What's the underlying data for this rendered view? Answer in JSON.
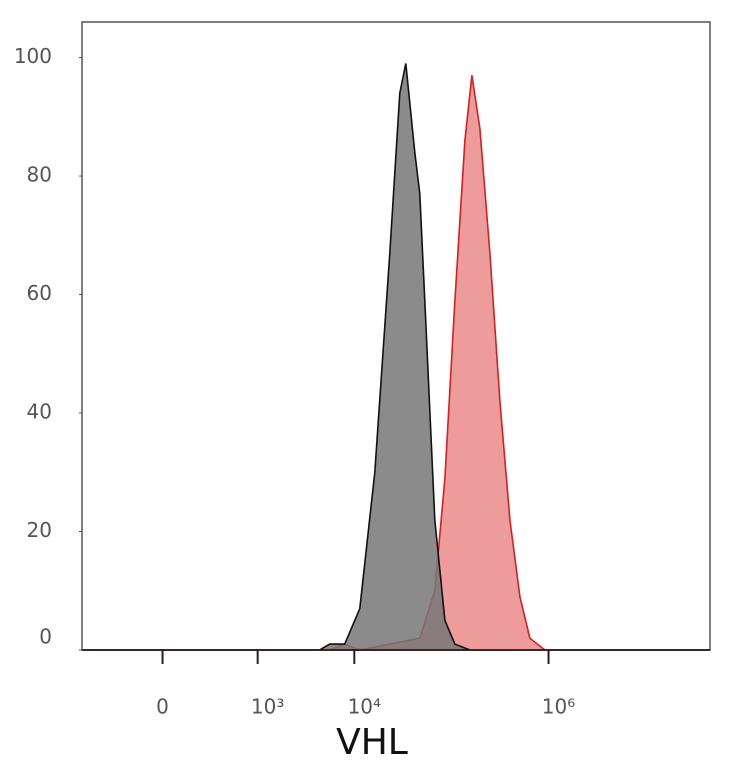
{
  "chart_data": {
    "type": "area",
    "x_label": "VHL",
    "xscale": "asinh",
    "xlim": [
      -700,
      46000000
    ],
    "xticks": [
      0,
      {
        "value": 1000,
        "label": "10³"
      },
      {
        "value": 10000,
        "label": "10⁴"
      },
      {
        "value": 1000000,
        "label": "10⁶"
      }
    ],
    "ylim": [
      0,
      106
    ],
    "yticks": [
      0,
      20,
      40,
      60,
      80,
      100
    ],
    "series": [
      {
        "color": "#d42020",
        "fill": "#ea8a8a",
        "x": [
          -700,
          5582,
          7970,
          11380,
          47300,
          67400,
          85600,
          108500,
          137600,
          162400,
          196500,
          249000,
          316000,
          400000,
          507000,
          643000,
          918000,
          46000000
        ],
        "values": [
          0,
          0,
          1,
          0,
          2,
          10,
          29,
          59,
          86,
          97,
          88,
          67,
          42,
          22,
          9,
          2,
          0,
          0
        ]
      },
      {
        "color": "#111111",
        "fill": "#777777",
        "x": [
          -700,
          4403,
          5582,
          7970,
          11380,
          16240,
          23200,
          29400,
          33900,
          42000,
          47300,
          53200,
          67400,
          85600,
          108500,
          155000,
          46000000
        ],
        "values": [
          0,
          0,
          1,
          1,
          7,
          30,
          67,
          94,
          99,
          84,
          77,
          59,
          22,
          5,
          1,
          0,
          0
        ]
      }
    ]
  }
}
